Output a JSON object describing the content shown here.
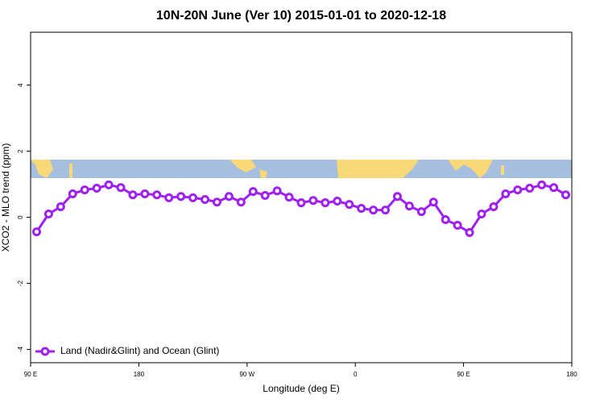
{
  "chart_data": {
    "type": "line",
    "title": "10N-20N June (Ver 10)   2015-01-01 to 2020-12-18",
    "x_label": "Longitude (deg E)",
    "y_label": "XCO2 - MLO trend (ppm)",
    "x": [
      95,
      105,
      115,
      125,
      135,
      145,
      155,
      165,
      175,
      185,
      195,
      205,
      215,
      225,
      235,
      245,
      255,
      265,
      275,
      285,
      295,
      305,
      315,
      325,
      335,
      345,
      355,
      365,
      375,
      385,
      395,
      405,
      415,
      425,
      435,
      445,
      455,
      465,
      475,
      485,
      495,
      505,
      515,
      525,
      535
    ],
    "series": [
      {
        "name": "Land (Nadir&Glint) and Ocean (Glint)",
        "color": "#a020f0",
        "values": [
          -0.44,
          0.1,
          0.32,
          0.71,
          0.83,
          0.88,
          0.98,
          0.9,
          0.68,
          0.71,
          0.68,
          0.59,
          0.63,
          0.59,
          0.54,
          0.46,
          0.63,
          0.46,
          0.78,
          0.66,
          0.8,
          0.61,
          0.44,
          0.51,
          0.44,
          0.49,
          0.39,
          0.27,
          0.22,
          0.22,
          0.63,
          0.34,
          0.17,
          0.46,
          -0.07,
          -0.24,
          -0.46,
          0.1,
          0.32,
          0.71,
          0.83,
          0.88,
          0.98,
          0.9,
          0.68
        ]
      }
    ],
    "xlim": [
      90,
      540
    ],
    "xticks": [
      {
        "value": 90,
        "label": "90 E"
      },
      180,
      {
        "value": 270,
        "label": "90 W"
      },
      {
        "value": 360,
        "label": "0"
      },
      {
        "value": 450,
        "label": "90 E"
      },
      {
        "value": 540,
        "label": "180"
      }
    ],
    "ylim": [
      -4.4,
      5.6
    ],
    "yticks": [
      -4,
      -2,
      0,
      2,
      4
    ],
    "legend": "bottom-left"
  }
}
